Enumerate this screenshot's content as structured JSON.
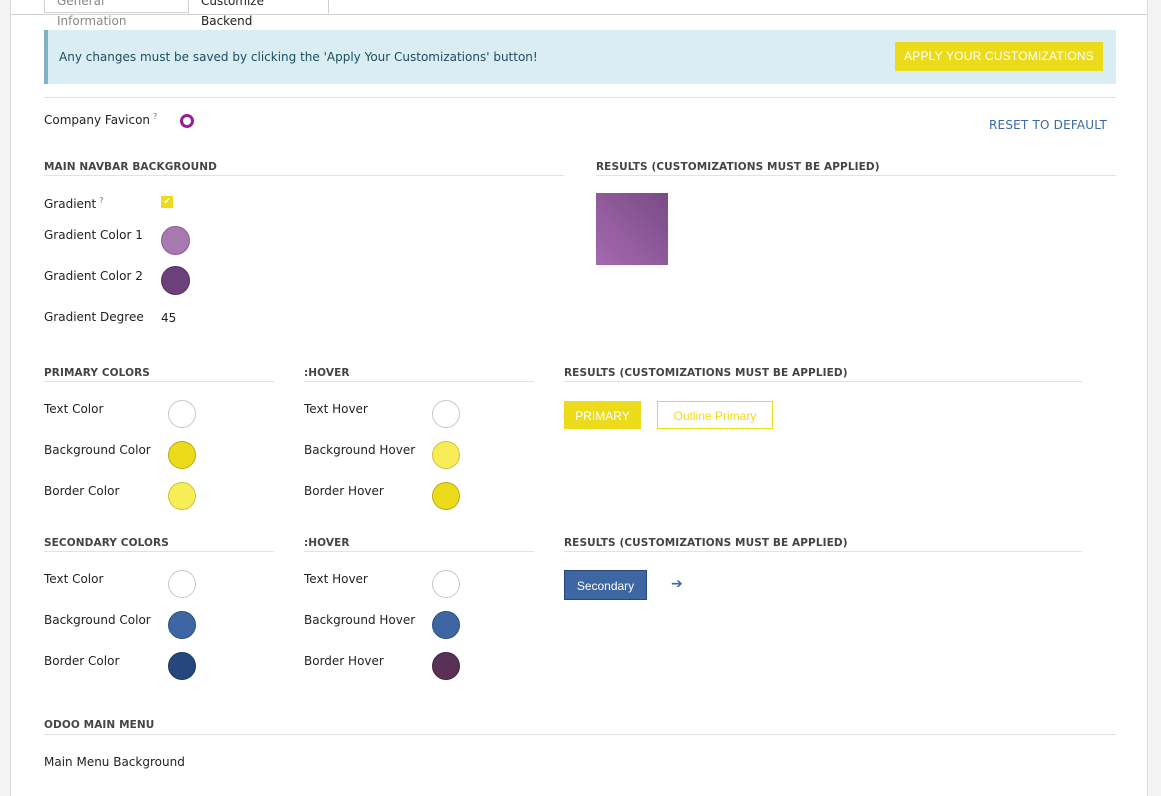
{
  "tabs": [
    "General Information",
    "Customize Backend"
  ],
  "alert": {
    "message": "Any changes must be saved by clicking the 'Apply Your Customizations' button!",
    "apply_label": "APPLY YOUR CUSTOMIZATIONS"
  },
  "favicon": {
    "label": "Company Favicon",
    "help": "?"
  },
  "reset_label": "RESET TO DEFAULT",
  "navbar": {
    "section": "MAIN NAVBAR BACKGROUND",
    "results": "RESULTS (CUSTOMIZATIONS MUST BE APPLIED)",
    "gradient_label": "Gradient",
    "gradient_help": "?",
    "color1_label": "Gradient Color 1",
    "color1": "#a878b0",
    "color2_label": "Gradient Color 2",
    "color2": "#6d4079",
    "degree_label": "Gradient Degree",
    "degree": "45"
  },
  "primary": {
    "section": "PRIMARY COLORS",
    "hover_section": ":HOVER",
    "results": "RESULTS (CUSTOMIZATIONS MUST BE APPLIED)",
    "rows": [
      {
        "label": "Text Color",
        "color": "#ffffff",
        "hover_label": "Text Hover",
        "hover_color": "#ffffff"
      },
      {
        "label": "Background Color",
        "color": "#ecdb1b",
        "hover_label": "Background Hover",
        "hover_color": "#f7ee57"
      },
      {
        "label": "Border Color",
        "color": "#f7ee57",
        "hover_label": "Border Hover",
        "hover_color": "#ecdb1b"
      }
    ],
    "btn_label": "PRIMARY",
    "outline_label": "Outline Primary"
  },
  "secondary": {
    "section": "SECONDARY COLORS",
    "hover_section": ":HOVER",
    "results": "RESULTS (CUSTOMIZATIONS MUST BE APPLIED)",
    "rows": [
      {
        "label": "Text Color",
        "color": "#ffffff",
        "hover_label": "Text Hover",
        "hover_color": "#ffffff"
      },
      {
        "label": "Background Color",
        "color": "#3d66a3",
        "hover_label": "Background Hover",
        "hover_color": "#3d66a3"
      },
      {
        "label": "Border Color",
        "color": "#25477e",
        "hover_label": "Border Hover",
        "hover_color": "#5a3156"
      }
    ],
    "btn_label": "Secondary"
  },
  "main_menu": {
    "section": "ODOO MAIN MENU",
    "bg_label": "Main Menu Background"
  }
}
